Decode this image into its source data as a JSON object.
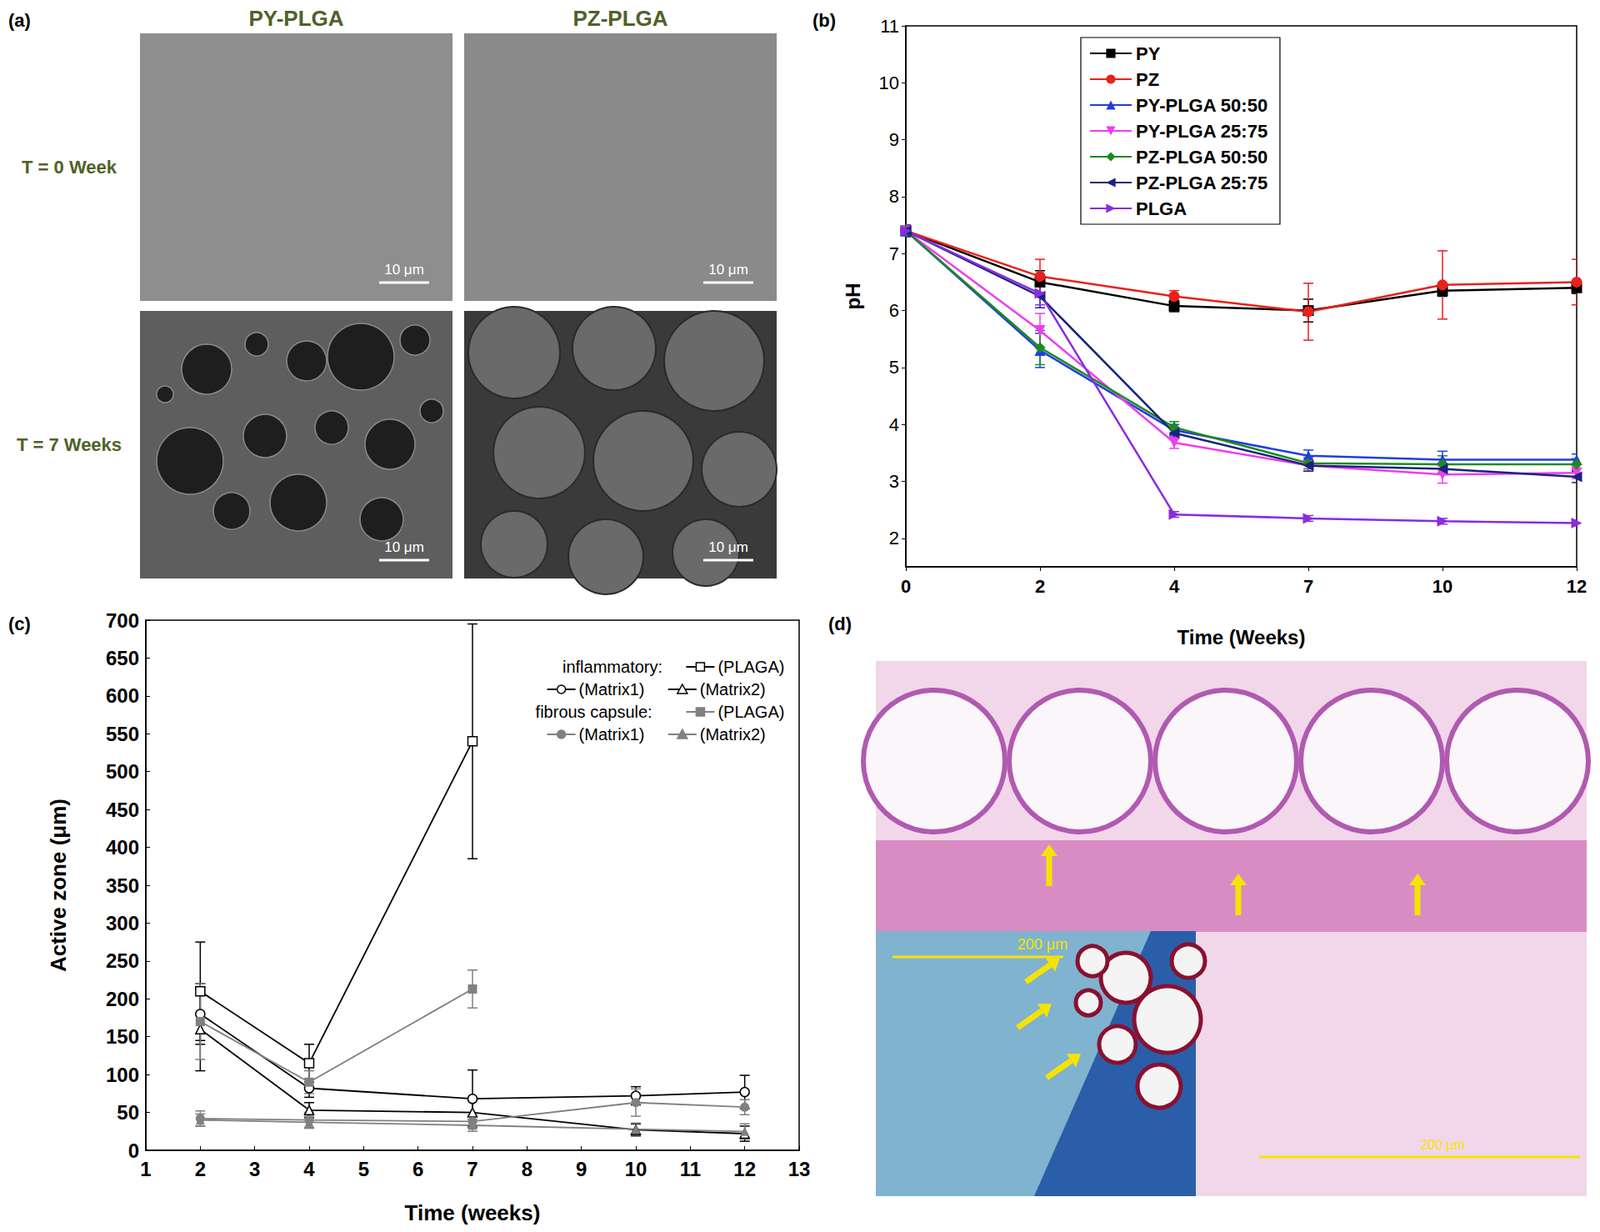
{
  "chart_data": [
    {
      "type": "line",
      "panel": "(b)",
      "x_label": "Time (Weeks)",
      "y_label": "pH",
      "categories": [
        "0",
        "2",
        "4",
        "7",
        "10",
        "12"
      ],
      "ylim": [
        1.5,
        11
      ],
      "yticks": [
        2,
        3,
        4,
        5,
        6,
        7,
        8,
        9,
        10,
        11
      ],
      "grid": false,
      "legend": "upper left",
      "series": [
        {
          "name": "PY",
          "color": "#000000",
          "marker": "square",
          "values": [
            7.4,
            6.5,
            6.08,
            6.0,
            6.35,
            6.4
          ],
          "errors": [
            0.1,
            0.2,
            0.1,
            0.2,
            0.1,
            0.1
          ]
        },
        {
          "name": "PZ",
          "color": "#e8211b",
          "marker": "circle",
          "values": [
            7.4,
            6.6,
            6.25,
            5.98,
            6.45,
            6.5
          ],
          "errors": [
            0.1,
            0.3,
            0.1,
            0.5,
            0.6,
            0.4
          ]
        },
        {
          "name": "PY-PLGA 50:50",
          "color": "#1f3fe0",
          "marker": "triangle-up",
          "values": [
            7.4,
            5.3,
            3.9,
            3.45,
            3.38,
            3.38
          ],
          "errors": [
            0.1,
            0.3,
            0.1,
            0.1,
            0.15,
            0.1
          ]
        },
        {
          "name": "PY-PLGA 25:75",
          "color": "#f03cf0",
          "marker": "triangle-down",
          "values": [
            7.4,
            5.65,
            3.68,
            3.28,
            3.12,
            3.15
          ],
          "errors": [
            0.1,
            0.3,
            0.1,
            0.1,
            0.15,
            0.1
          ]
        },
        {
          "name": "PZ-PLGA 50:50",
          "color": "#1f8a1f",
          "marker": "diamond",
          "values": [
            7.4,
            5.35,
            3.95,
            3.32,
            3.3,
            3.3
          ],
          "errors": [
            0.1,
            0.3,
            0.1,
            0.1,
            0.15,
            0.1
          ]
        },
        {
          "name": "PZ-PLGA 25:75",
          "color": "#1a237e",
          "marker": "triangle-left",
          "values": [
            7.4,
            6.25,
            3.85,
            3.28,
            3.22,
            3.08
          ],
          "errors": [
            0.1,
            0.2,
            0.1,
            0.1,
            0.1,
            0.1
          ]
        },
        {
          "name": "PLGA",
          "color": "#8a2be2",
          "marker": "triangle-right",
          "values": [
            7.4,
            6.3,
            2.42,
            2.35,
            2.3,
            2.27
          ],
          "errors": [
            0.1,
            0.2,
            0.05,
            0.05,
            0.05,
            0.05
          ]
        }
      ]
    },
    {
      "type": "line",
      "panel": "(c)",
      "x_label": "Time (weeks)",
      "y_label": "Active zone (μm)",
      "xlim": [
        1,
        13
      ],
      "xticks": [
        1,
        2,
        3,
        4,
        5,
        6,
        7,
        8,
        9,
        10,
        11,
        12,
        13
      ],
      "ylim": [
        0,
        700
      ],
      "yticks": [
        0,
        50,
        100,
        150,
        200,
        250,
        300,
        350,
        400,
        450,
        500,
        550,
        600,
        650,
        700
      ],
      "grid": false,
      "legend": "upper right",
      "series": [
        {
          "name": "(PLAGA)",
          "group": "inflammatory:",
          "color": "#000000",
          "marker": "open-square",
          "x": [
            2,
            4,
            7
          ],
          "values": [
            210,
            115,
            540
          ],
          "errors": [
            65,
            25,
            155
          ]
        },
        {
          "name": "(Matrix1)",
          "group": "inflammatory:",
          "color": "#000000",
          "marker": "open-circle",
          "x": [
            2,
            4,
            7,
            10,
            12
          ],
          "values": [
            180,
            82,
            68,
            72,
            77
          ],
          "errors": [
            40,
            12,
            38,
            12,
            22
          ]
        },
        {
          "name": "(Matrix2)",
          "group": "inflammatory:",
          "color": "#000000",
          "marker": "open-triangle",
          "x": [
            2,
            4,
            7,
            10,
            12
          ],
          "values": [
            160,
            53,
            50,
            27,
            22
          ],
          "errors": [
            55,
            10,
            18,
            8,
            10
          ]
        },
        {
          "name": "(PLAGA)",
          "group": "fibrous capsule:",
          "color": "#808080",
          "marker": "square",
          "x": [
            2,
            4,
            7
          ],
          "values": [
            170,
            90,
            213
          ],
          "errors": [
            50,
            15,
            25
          ]
        },
        {
          "name": "(Matrix1)",
          "group": "fibrous capsule:",
          "color": "#808080",
          "marker": "circle",
          "x": [
            2,
            4,
            7,
            10,
            12
          ],
          "values": [
            42,
            40,
            38,
            63,
            57
          ],
          "errors": [
            10,
            10,
            8,
            18,
            10
          ]
        },
        {
          "name": "(Matrix2)",
          "group": "fibrous capsule:",
          "color": "#808080",
          "marker": "triangle",
          "x": [
            2,
            4,
            7,
            10,
            12
          ],
          "values": [
            40,
            37,
            33,
            28,
            25
          ],
          "errors": [
            8,
            8,
            8,
            8,
            10
          ]
        }
      ]
    }
  ],
  "image_panels": {
    "a": {
      "label": "(a)",
      "columns": [
        "PY-PLGA",
        "PZ-PLGA"
      ],
      "rows": [
        "T = 0 Week",
        "T = 7 Weeks"
      ],
      "scale_bar": "10 μm"
    },
    "d": {
      "label": "(d)",
      "scale_bars": [
        "200 μm",
        "200 μm"
      ]
    }
  }
}
